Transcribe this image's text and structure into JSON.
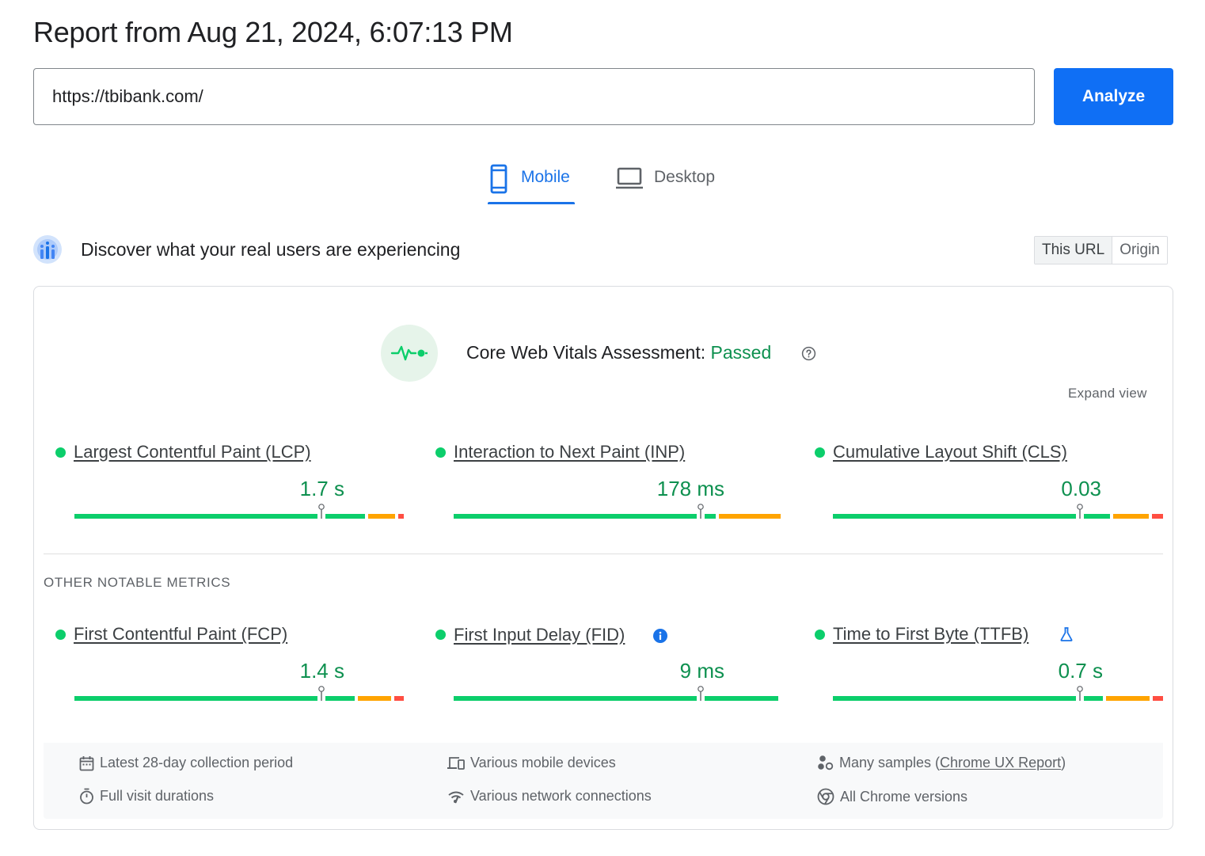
{
  "report": {
    "title": "Report from Aug 21, 2024, 6:07:13 PM"
  },
  "search": {
    "url_value": "https://tbibank.com/",
    "analyze_label": "Analyze"
  },
  "tabs": [
    {
      "label": "Mobile",
      "icon": "smartphone-icon",
      "active": true
    },
    {
      "label": "Desktop",
      "icon": "laptop-icon",
      "active": false
    }
  ],
  "field_data": {
    "heading": "Discover what your real users are experiencing",
    "toggle": {
      "this_url": "This URL",
      "origin": "Origin"
    }
  },
  "assessment": {
    "label": "Core Web Vitals Assessment:",
    "status": "Passed",
    "expand_label": "Expand view"
  },
  "core_metrics": [
    {
      "name": "Largest Contentful Paint (LCP)",
      "value": "1.7 s",
      "status": "good"
    },
    {
      "name": "Interaction to Next Paint (INP)",
      "value": "178 ms",
      "status": "good"
    },
    {
      "name": "Cumulative Layout Shift (CLS)",
      "value": "0.03",
      "status": "good"
    }
  ],
  "other_heading": "OTHER NOTABLE METRICS",
  "other_metrics": [
    {
      "name": "First Contentful Paint (FCP)",
      "value": "1.4 s",
      "status": "good"
    },
    {
      "name": "First Input Delay (FID)",
      "value": "9 ms",
      "status": "good",
      "icon": "info-icon"
    },
    {
      "name": "Time to First Byte (TTFB)",
      "value": "0.7 s",
      "status": "good",
      "icon": "experimental-flask-icon"
    }
  ],
  "footer": {
    "collection_period": "Latest 28-day collection period",
    "devices": "Various mobile devices",
    "samples_prefix": "Many samples (",
    "samples_link": "Chrome UX Report",
    "samples_suffix": ")",
    "visit_durations": "Full visit durations",
    "network": "Various network connections",
    "chrome_versions": "All Chrome versions"
  },
  "colors": {
    "accent": "#1a73e8",
    "button": "#0f6ff5",
    "good": "#0cce6b",
    "good_text": "#0d904f",
    "needs_improvement": "#ffa400",
    "poor": "#ff4e42"
  }
}
